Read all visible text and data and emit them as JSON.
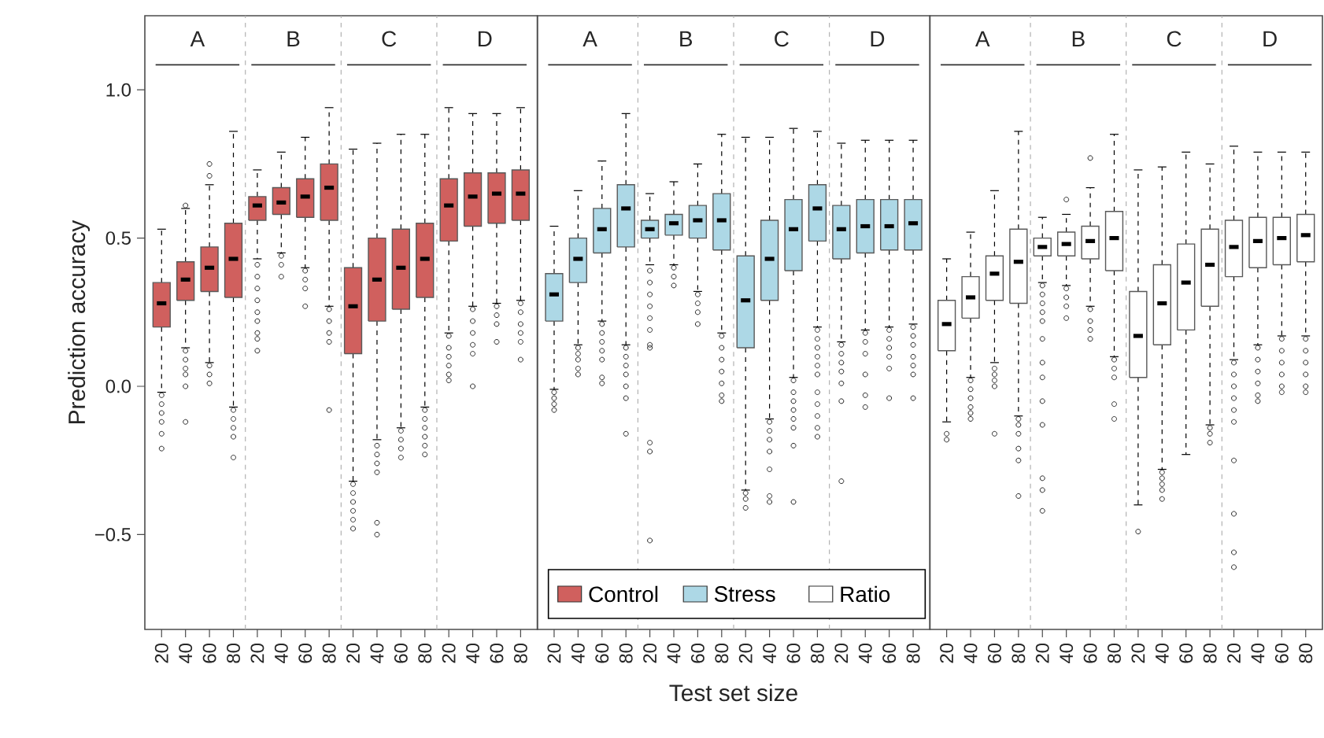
{
  "chart_data": [
    {
      "type": "box",
      "ylabel": "Prediction accuracy",
      "categories": [
        "20",
        "40",
        "60",
        "80",
        "20",
        "40",
        "60",
        "80",
        "20",
        "40",
        "60",
        "80",
        "20",
        "40",
        "60",
        "80"
      ],
      "ylim": [
        -0.82,
        1.25
      ],
      "yticks": [
        {
          "value": -0.5,
          "label": "−0.5"
        },
        {
          "value": 0,
          "label": "0.0"
        },
        {
          "value": 0.5,
          "label": "0.5"
        },
        {
          "value": 1,
          "label": "1.0"
        }
      ],
      "annotations": [
        "A",
        "B",
        "C",
        "D"
      ],
      "series": [
        {
          "name": "Control",
          "color": "#d0605e",
          "boxes": [
            {
              "low": -0.02,
              "q1": 0.2,
              "median": 0.28,
              "q3": 0.35,
              "high": 0.53,
              "outliers": [
                -0.03,
                -0.06,
                -0.09,
                -0.12,
                -0.16,
                -0.21
              ]
            },
            {
              "low": 0.13,
              "q1": 0.29,
              "median": 0.36,
              "q3": 0.42,
              "high": 0.6,
              "outliers": [
                0.61,
                0.12,
                0.09,
                0.06,
                0.04,
                0.0,
                -0.12
              ]
            },
            {
              "low": 0.08,
              "q1": 0.32,
              "median": 0.4,
              "q3": 0.47,
              "high": 0.68,
              "outliers": [
                0.75,
                0.71,
                0.07,
                0.04,
                0.01
              ]
            },
            {
              "low": -0.07,
              "q1": 0.3,
              "median": 0.43,
              "q3": 0.55,
              "high": 0.86,
              "outliers": [
                -0.08,
                -0.11,
                -0.14,
                -0.17,
                -0.24
              ]
            },
            {
              "low": 0.43,
              "q1": 0.56,
              "median": 0.61,
              "q3": 0.64,
              "high": 0.73,
              "outliers": [
                0.41,
                0.37,
                0.33,
                0.29,
                0.25,
                0.22,
                0.18,
                0.16,
                0.12
              ]
            },
            {
              "low": 0.45,
              "q1": 0.58,
              "median": 0.62,
              "q3": 0.67,
              "high": 0.79,
              "outliers": [
                0.44,
                0.41,
                0.37
              ]
            },
            {
              "low": 0.4,
              "q1": 0.57,
              "median": 0.64,
              "q3": 0.7,
              "high": 0.84,
              "outliers": [
                0.39,
                0.36,
                0.33,
                0.27
              ]
            },
            {
              "low": 0.27,
              "q1": 0.56,
              "median": 0.67,
              "q3": 0.75,
              "high": 0.94,
              "outliers": [
                0.26,
                0.22,
                0.18,
                0.15,
                -0.08
              ]
            },
            {
              "low": -0.32,
              "q1": 0.11,
              "median": 0.27,
              "q3": 0.4,
              "high": 0.8,
              "outliers": [
                -0.33,
                -0.36,
                -0.39,
                -0.42,
                -0.45,
                -0.48
              ]
            },
            {
              "low": -0.18,
              "q1": 0.22,
              "median": 0.36,
              "q3": 0.5,
              "high": 0.82,
              "outliers": [
                -0.2,
                -0.23,
                -0.26,
                -0.29,
                -0.46,
                -0.5
              ]
            },
            {
              "low": -0.14,
              "q1": 0.26,
              "median": 0.4,
              "q3": 0.53,
              "high": 0.85,
              "outliers": [
                -0.15,
                -0.18,
                -0.21,
                -0.24
              ]
            },
            {
              "low": -0.07,
              "q1": 0.3,
              "median": 0.43,
              "q3": 0.55,
              "high": 0.85,
              "outliers": [
                -0.08,
                -0.11,
                -0.14,
                -0.17,
                -0.2,
                -0.23
              ]
            },
            {
              "low": 0.18,
              "q1": 0.49,
              "median": 0.61,
              "q3": 0.7,
              "high": 0.94,
              "outliers": [
                0.17,
                0.13,
                0.1,
                0.07,
                0.04,
                0.02
              ]
            },
            {
              "low": 0.27,
              "q1": 0.54,
              "median": 0.64,
              "q3": 0.72,
              "high": 0.92,
              "outliers": [
                0.26,
                0.22,
                0.18,
                0.14,
                0.11,
                0.0
              ]
            },
            {
              "low": 0.28,
              "q1": 0.55,
              "median": 0.65,
              "q3": 0.72,
              "high": 0.92,
              "outliers": [
                0.27,
                0.24,
                0.21,
                0.15
              ]
            },
            {
              "low": 0.29,
              "q1": 0.56,
              "median": 0.65,
              "q3": 0.73,
              "high": 0.94,
              "outliers": [
                0.28,
                0.25,
                0.21,
                0.18,
                0.15,
                0.09
              ]
            }
          ]
        }
      ]
    },
    {
      "type": "box",
      "xlabel": "Test set size",
      "tick_labels": "x",
      "legend": "bottom",
      "categories": [
        "20",
        "40",
        "60",
        "80",
        "20",
        "40",
        "60",
        "80",
        "20",
        "40",
        "60",
        "80",
        "20",
        "40",
        "60",
        "80"
      ],
      "ylim": [
        -0.82,
        1.25
      ],
      "annotations": [
        "A",
        "B",
        "C",
        "D"
      ],
      "series": [
        {
          "name": "Stress",
          "color": "#add8e6",
          "boxes": [
            {
              "low": -0.01,
              "q1": 0.22,
              "median": 0.31,
              "q3": 0.38,
              "high": 0.54,
              "outliers": [
                -0.02,
                -0.04,
                -0.06,
                -0.08
              ]
            },
            {
              "low": 0.14,
              "q1": 0.35,
              "median": 0.43,
              "q3": 0.5,
              "high": 0.66,
              "outliers": [
                0.13,
                0.11,
                0.09,
                0.06,
                0.04
              ]
            },
            {
              "low": 0.22,
              "q1": 0.45,
              "median": 0.53,
              "q3": 0.6,
              "high": 0.76,
              "outliers": [
                0.21,
                0.18,
                0.15,
                0.12,
                0.09,
                0.03,
                0.01
              ]
            },
            {
              "low": 0.14,
              "q1": 0.47,
              "median": 0.6,
              "q3": 0.68,
              "high": 0.92,
              "outliers": [
                0.13,
                0.1,
                0.07,
                0.04,
                0.0,
                -0.04,
                -0.16
              ]
            },
            {
              "low": 0.41,
              "q1": 0.5,
              "median": 0.53,
              "q3": 0.56,
              "high": 0.65,
              "outliers": [
                0.39,
                0.35,
                0.31,
                0.27,
                0.23,
                0.19,
                0.14,
                0.13,
                -0.19,
                -0.22,
                -0.52
              ]
            },
            {
              "low": 0.41,
              "q1": 0.51,
              "median": 0.55,
              "q3": 0.58,
              "high": 0.69,
              "outliers": [
                0.4,
                0.37,
                0.34
              ]
            },
            {
              "low": 0.32,
              "q1": 0.5,
              "median": 0.56,
              "q3": 0.61,
              "high": 0.75,
              "outliers": [
                0.31,
                0.28,
                0.25,
                0.21
              ]
            },
            {
              "low": 0.18,
              "q1": 0.46,
              "median": 0.56,
              "q3": 0.65,
              "high": 0.85,
              "outliers": [
                0.17,
                0.13,
                0.09,
                0.05,
                0.01,
                -0.03,
                -0.05
              ]
            },
            {
              "low": -0.35,
              "q1": 0.13,
              "median": 0.29,
              "q3": 0.44,
              "high": 0.84,
              "outliers": [
                -0.36,
                -0.38,
                -0.41
              ]
            },
            {
              "low": -0.11,
              "q1": 0.29,
              "median": 0.43,
              "q3": 0.56,
              "high": 0.84,
              "outliers": [
                -0.12,
                -0.15,
                -0.18,
                -0.22,
                -0.28,
                -0.37,
                -0.39
              ]
            },
            {
              "low": 0.03,
              "q1": 0.39,
              "median": 0.53,
              "q3": 0.63,
              "high": 0.87,
              "outliers": [
                0.02,
                -0.02,
                -0.05,
                -0.08,
                -0.11,
                -0.14,
                -0.2,
                -0.39
              ]
            },
            {
              "low": 0.2,
              "q1": 0.49,
              "median": 0.6,
              "q3": 0.68,
              "high": 0.86,
              "outliers": [
                0.19,
                0.16,
                0.13,
                0.1,
                0.07,
                0.04,
                -0.02,
                -0.06,
                -0.1,
                -0.14,
                -0.17
              ]
            },
            {
              "low": 0.15,
              "q1": 0.43,
              "median": 0.53,
              "q3": 0.61,
              "high": 0.82,
              "outliers": [
                0.14,
                0.11,
                0.08,
                0.05,
                0.01,
                -0.05,
                -0.32
              ]
            },
            {
              "low": 0.19,
              "q1": 0.45,
              "median": 0.54,
              "q3": 0.63,
              "high": 0.83,
              "outliers": [
                0.18,
                0.15,
                0.11,
                0.04,
                -0.03,
                -0.07
              ]
            },
            {
              "low": 0.2,
              "q1": 0.46,
              "median": 0.54,
              "q3": 0.63,
              "high": 0.83,
              "outliers": [
                0.19,
                0.16,
                0.13,
                0.1,
                0.06,
                -0.04
              ]
            },
            {
              "low": 0.21,
              "q1": 0.46,
              "median": 0.55,
              "q3": 0.63,
              "high": 0.83,
              "outliers": [
                0.2,
                0.17,
                0.14,
                0.1,
                0.07,
                0.04,
                -0.04
              ]
            }
          ]
        }
      ]
    },
    {
      "type": "box",
      "tick_labels": "x",
      "categories": [
        "20",
        "40",
        "60",
        "80",
        "20",
        "40",
        "60",
        "80",
        "20",
        "40",
        "60",
        "80",
        "20",
        "40",
        "60",
        "80"
      ],
      "ylim": [
        -0.82,
        1.25
      ],
      "annotations": [
        "A",
        "B",
        "C",
        "D"
      ],
      "series": [
        {
          "name": "Ratio",
          "color": "#ffffff",
          "boxes": [
            {
              "low": -0.12,
              "q1": 0.12,
              "median": 0.21,
              "q3": 0.29,
              "high": 0.43,
              "outliers": [
                -0.16,
                -0.18
              ]
            },
            {
              "low": 0.03,
              "q1": 0.23,
              "median": 0.3,
              "q3": 0.37,
              "high": 0.52,
              "outliers": [
                0.02,
                -0.01,
                -0.04,
                -0.07,
                -0.09,
                -0.11
              ]
            },
            {
              "low": 0.08,
              "q1": 0.29,
              "median": 0.38,
              "q3": 0.44,
              "high": 0.66,
              "outliers": [
                0.06,
                0.04,
                0.02,
                0.0,
                -0.16
              ]
            },
            {
              "low": -0.1,
              "q1": 0.28,
              "median": 0.42,
              "q3": 0.53,
              "high": 0.86,
              "outliers": [
                -0.11,
                -0.13,
                -0.16,
                -0.21,
                -0.25,
                -0.37
              ]
            },
            {
              "low": 0.35,
              "q1": 0.44,
              "median": 0.47,
              "q3": 0.5,
              "high": 0.57,
              "outliers": [
                0.34,
                0.31,
                0.28,
                0.25,
                0.22,
                0.16,
                0.08,
                0.03,
                -0.05,
                -0.13,
                -0.31,
                -0.35,
                -0.42
              ]
            },
            {
              "low": 0.34,
              "q1": 0.44,
              "median": 0.48,
              "q3": 0.52,
              "high": 0.58,
              "outliers": [
                0.63,
                0.33,
                0.3,
                0.27,
                0.23
              ]
            },
            {
              "low": 0.27,
              "q1": 0.43,
              "median": 0.49,
              "q3": 0.54,
              "high": 0.67,
              "outliers": [
                0.77,
                0.26,
                0.22,
                0.19,
                0.16
              ]
            },
            {
              "low": 0.1,
              "q1": 0.39,
              "median": 0.5,
              "q3": 0.59,
              "high": 0.85,
              "outliers": [
                0.09,
                0.06,
                0.03,
                -0.06,
                -0.11
              ]
            },
            {
              "low": -0.4,
              "q1": 0.03,
              "median": 0.17,
              "q3": 0.32,
              "high": 0.73,
              "outliers": [
                -0.49
              ]
            },
            {
              "low": -0.28,
              "q1": 0.14,
              "median": 0.28,
              "q3": 0.41,
              "high": 0.74,
              "outliers": [
                -0.29,
                -0.31,
                -0.33,
                -0.35,
                -0.38
              ]
            },
            {
              "low": -0.23,
              "q1": 0.19,
              "median": 0.35,
              "q3": 0.48,
              "high": 0.79
            },
            {
              "low": -0.13,
              "q1": 0.27,
              "median": 0.41,
              "q3": 0.53,
              "high": 0.75,
              "outliers": [
                -0.14,
                -0.16,
                -0.19
              ]
            },
            {
              "low": 0.09,
              "q1": 0.37,
              "median": 0.47,
              "q3": 0.56,
              "high": 0.81,
              "outliers": [
                0.08,
                0.04,
                0.0,
                -0.04,
                -0.08,
                -0.12,
                -0.25,
                -0.43,
                -0.56,
                -0.61
              ]
            },
            {
              "low": 0.14,
              "q1": 0.4,
              "median": 0.49,
              "q3": 0.57,
              "high": 0.79,
              "outliers": [
                0.13,
                0.09,
                0.05,
                0.01,
                -0.03,
                -0.05
              ]
            },
            {
              "low": 0.17,
              "q1": 0.41,
              "median": 0.5,
              "q3": 0.57,
              "high": 0.79,
              "outliers": [
                0.16,
                0.12,
                0.08,
                0.04,
                0.0,
                -0.02
              ]
            },
            {
              "low": 0.17,
              "q1": 0.42,
              "median": 0.51,
              "q3": 0.58,
              "high": 0.79,
              "outliers": [
                0.16,
                0.12,
                0.08,
                0.04,
                0.0,
                -0.02
              ]
            }
          ]
        }
      ]
    }
  ]
}
